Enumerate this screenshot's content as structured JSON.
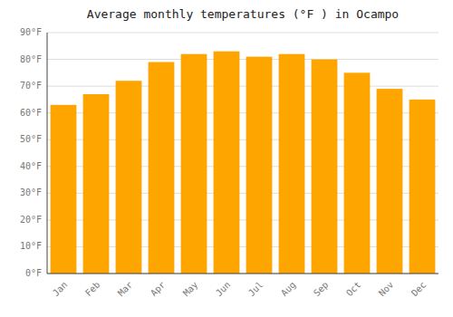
{
  "chart_data": {
    "type": "bar",
    "title": "Average monthly temperatures (°F ) in Ocampo",
    "categories": [
      "Jan",
      "Feb",
      "Mar",
      "Apr",
      "May",
      "Jun",
      "Jul",
      "Aug",
      "Sep",
      "Oct",
      "Nov",
      "Dec"
    ],
    "values": [
      63,
      67,
      72,
      79,
      82,
      83,
      81,
      82,
      80,
      75,
      69,
      65
    ],
    "color": "#FFA500",
    "ylim": [
      0,
      90
    ],
    "yticks": [
      {
        "value": 0,
        "label": "0°F"
      },
      {
        "value": 10,
        "label": "10°F"
      },
      {
        "value": 20,
        "label": "20°F"
      },
      {
        "value": 30,
        "label": "30°F"
      },
      {
        "value": 40,
        "label": "40°F"
      },
      {
        "value": 50,
        "label": "50°F"
      },
      {
        "value": 60,
        "label": "60°F"
      },
      {
        "value": 70,
        "label": "70°F"
      },
      {
        "value": 80,
        "label": "80°F"
      },
      {
        "value": 90,
        "label": "90°F"
      }
    ],
    "grid": true
  }
}
